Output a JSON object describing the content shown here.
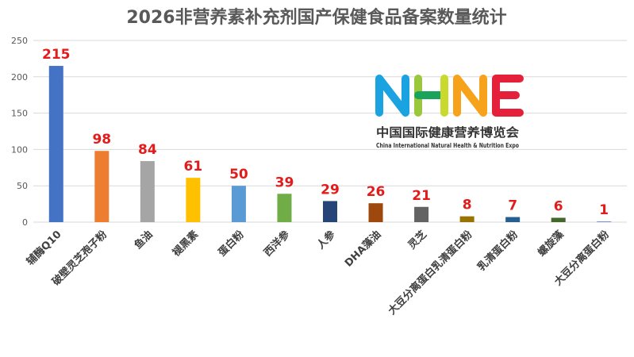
{
  "chart_data": {
    "type": "bar",
    "title": "2026非营养素补充剂国产保健食品备案数量统计",
    "xlabel": "",
    "ylabel": "",
    "ylim": [
      0,
      250
    ],
    "yticks": [
      0,
      50,
      100,
      150,
      200,
      250
    ],
    "grid": true,
    "legend": "none",
    "categories": [
      "辅酶Q10",
      "破壁灵芝孢子粉",
      "鱼油",
      "褪黑素",
      "蛋白粉",
      "西洋参",
      "人参",
      "DHA藻油",
      "灵芝",
      "大豆分离蛋白乳清蛋白粉",
      "乳清蛋白粉",
      "螺旋藻",
      "大豆分离蛋白粉"
    ],
    "values": [
      215,
      98,
      84,
      61,
      50,
      39,
      29,
      26,
      21,
      8,
      7,
      6,
      1
    ],
    "colors": [
      "#4472c4",
      "#ed7d31",
      "#a5a5a5",
      "#ffc000",
      "#5b9bd5",
      "#70ad47",
      "#264478",
      "#9e480e",
      "#636363",
      "#997300",
      "#255e91",
      "#43682b",
      "#698ed0"
    ],
    "value_label_color": "#e31b1b"
  },
  "logo": {
    "letters": "NHNE",
    "cn": "中国国际健康营养博览会",
    "en": "China International Natural Health & Nutrition Expo"
  }
}
